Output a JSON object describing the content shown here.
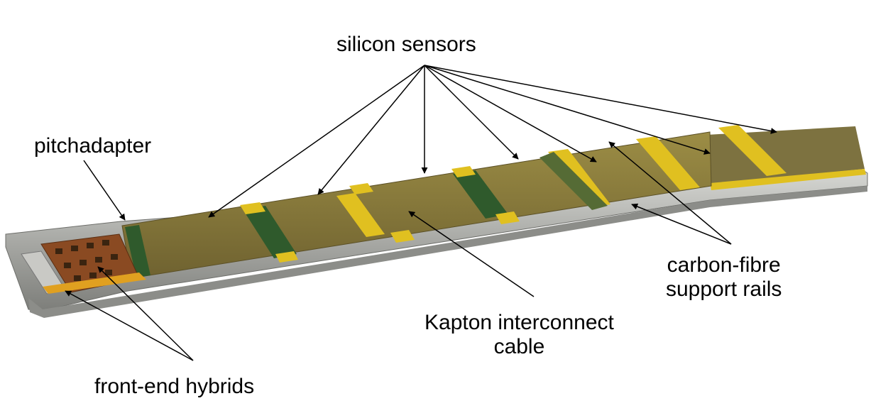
{
  "labels": {
    "silicon_sensors": "silicon sensors",
    "pitchadapter": "pitchadapter",
    "carbon_fibre_line1": "carbon-fibre",
    "carbon_fibre_line2": "support rails",
    "kapton_line1": "Kapton interconnect",
    "kapton_line2": "cable",
    "front_end_hybrids": "front-end hybrids"
  },
  "colors": {
    "sensor": "#8a7a3a",
    "sensor_dark": "#6f6230",
    "kapton_band": "#2f5a2c",
    "yellow_pad": "#e0c020",
    "rail": "#a9aaa6",
    "hybrid": "#8a4a22",
    "arrow": "#000000"
  }
}
